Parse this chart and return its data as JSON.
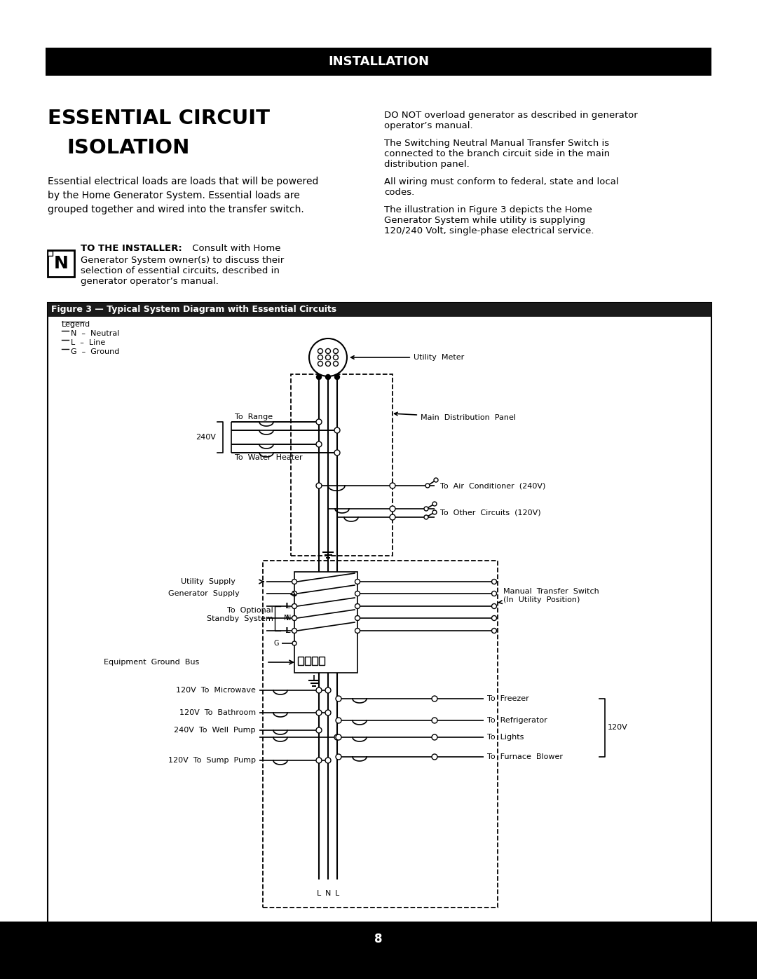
{
  "page_bg": "#ffffff",
  "header_bar_color": "#000000",
  "header_text": "INSTALLATION",
  "header_text_color": "#ffffff",
  "figure_title": "Figure 3 — Typical System Diagram with Essential Circuits",
  "footer_text": "8"
}
